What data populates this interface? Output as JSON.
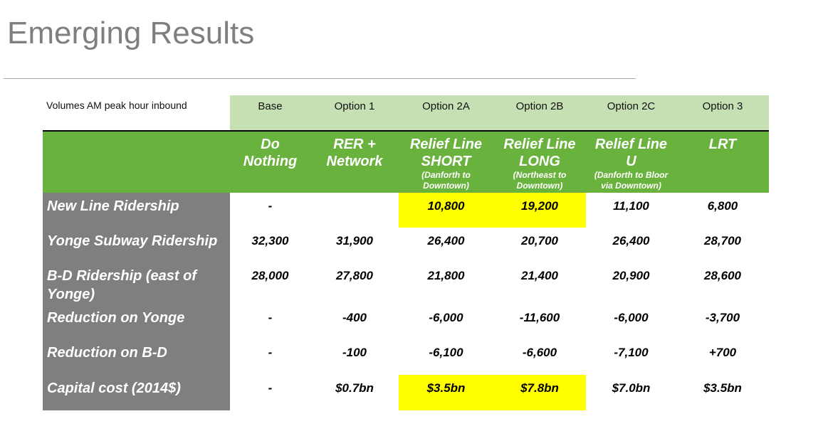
{
  "header": {
    "title": "Emerging Results"
  },
  "table": {
    "corner": "Volumes AM peak hour inbound",
    "columns": [
      {
        "header": "Base",
        "name": [
          "Do",
          "Nothing"
        ],
        "note": []
      },
      {
        "header": "Option 1",
        "name": [
          "RER +",
          "Network"
        ],
        "note": []
      },
      {
        "header": "Option 2A",
        "name": [
          "Relief Line",
          "SHORT"
        ],
        "note": [
          "(Danforth to",
          "Downtown)"
        ]
      },
      {
        "header": "Option 2B",
        "name": [
          "Relief Line",
          "LONG"
        ],
        "note": [
          "(Northeast to",
          "Downtown)"
        ]
      },
      {
        "header": "Option 2C",
        "name": [
          "Relief Line",
          "U"
        ],
        "note": [
          "(Danforth to Bloor",
          "via Downtown)"
        ]
      },
      {
        "header": "Option 3",
        "name": [
          "LRT"
        ],
        "note": []
      }
    ],
    "highlight_color": "#ffff00",
    "rows": [
      {
        "label": [
          "New Line Ridership"
        ],
        "values": [
          "-",
          null,
          "10,800",
          "19,200",
          "11,100",
          "6,800"
        ],
        "highlight": [
          2,
          3
        ]
      },
      {
        "label": [
          "Yonge Subway Ridership"
        ],
        "values": [
          "32,300",
          "31,900",
          "26,400",
          "20,700",
          "26,400",
          "28,700"
        ],
        "highlight": []
      },
      {
        "label": [
          "B-D Ridership (east of",
          "Yonge)"
        ],
        "values": [
          "28,000",
          "27,800",
          "21,800",
          "21,400",
          "20,900",
          "28,600"
        ],
        "highlight": []
      },
      {
        "label": [
          "Reduction on Yonge"
        ],
        "values": [
          "-",
          "-400",
          "-6,000",
          "-11,600",
          "-6,000",
          "-3,700"
        ],
        "highlight": []
      },
      {
        "label": [
          "Reduction on B-D"
        ],
        "values": [
          "-",
          "-100",
          "-6,100",
          "-6,600",
          "-7,100",
          "+700"
        ],
        "highlight": []
      },
      {
        "label": [
          "Capital cost (2014$)"
        ],
        "values": [
          "-",
          "$0.7bn",
          "$3.5bn",
          "$7.8bn",
          "$7.0bn",
          "$3.5bn"
        ],
        "highlight": [
          2,
          3
        ]
      }
    ]
  }
}
